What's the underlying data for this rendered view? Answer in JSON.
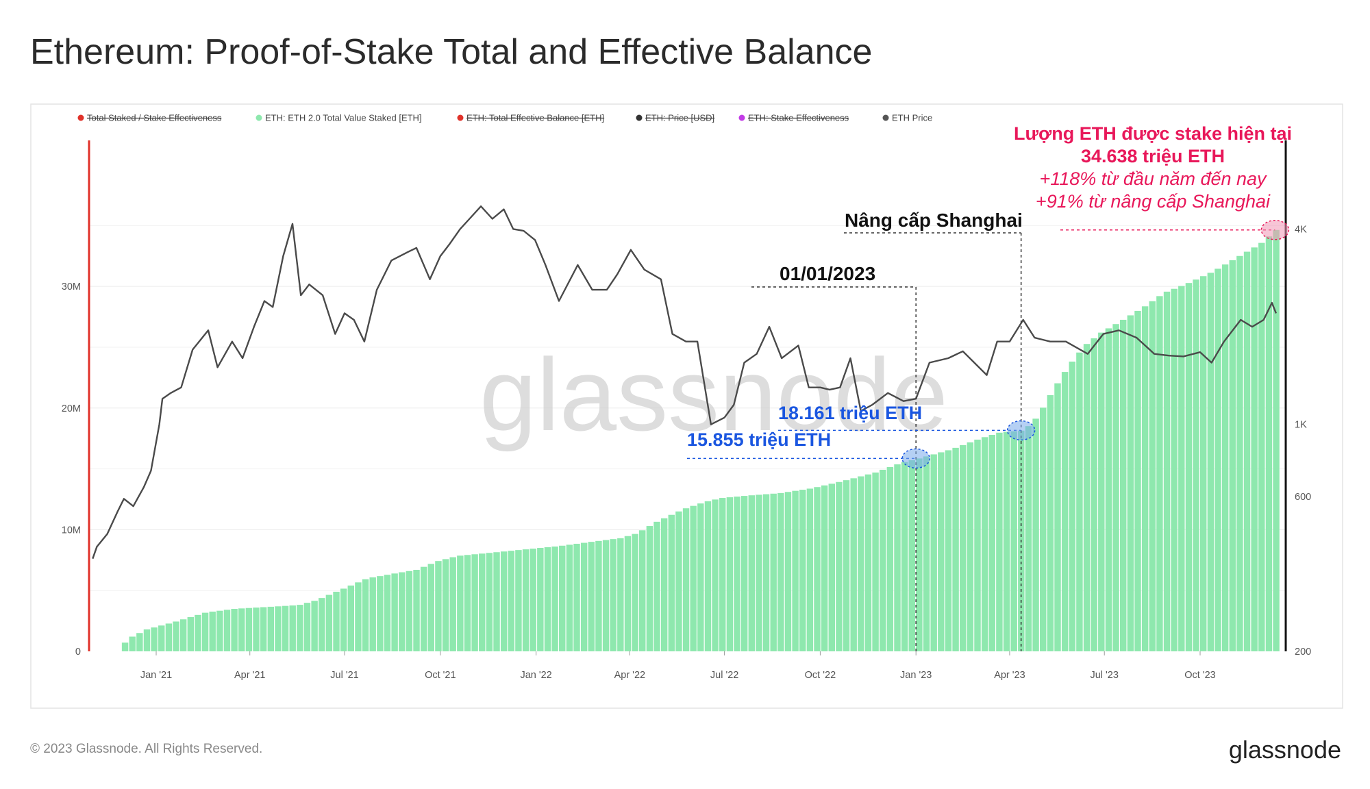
{
  "page": {
    "title": "Ethereum: Proof-of-Stake Total and Effective Balance",
    "footer": "© 2023 Glassnode. All Rights Reserved.",
    "brand": "glassnode",
    "watermark": "glassnode"
  },
  "legend": [
    {
      "label": "Total Staked / Stake Effectiveness",
      "color": "#e0322a",
      "struck": true
    },
    {
      "label": "ETH: ETH 2.0 Total Value Staked [ETH]",
      "color": "#8ee8ae",
      "struck": false
    },
    {
      "label": "ETH: Total Effective Balance [ETH]",
      "color": "#e0322a",
      "struck": true
    },
    {
      "label": "ETH: Price [USD]",
      "color": "#333333",
      "struck": true
    },
    {
      "label": "ETH: Stake Effectiveness",
      "color": "#c23ce6",
      "struck": true
    },
    {
      "label": "ETH Price",
      "color": "#555555",
      "struck": false
    }
  ],
  "annotations": {
    "shanghai": "Nâng cấp Shanghai",
    "jan2023": "01/01/2023",
    "val_shanghai": "18.161 triệu ETH",
    "val_jan2023": "15.855 triệu ETH",
    "current_line1": "Lượng ETH được stake hiện tại",
    "current_line2": "34.638 triệu ETH",
    "current_line3": "+118% từ đầu năm đến nay",
    "current_line4": "+91% từ nâng cấp Shanghai"
  },
  "chart_data": {
    "type": "area",
    "x_range": [
      "2020-11-01",
      "2023-12-31"
    ],
    "x_ticks": [
      "Jan '21",
      "Apr '21",
      "Jul '21",
      "Oct '21",
      "Jan '22",
      "Apr '22",
      "Jul '22",
      "Oct '22",
      "Jan '23",
      "Apr '23",
      "Jul '23",
      "Oct '23"
    ],
    "y_left": {
      "ticks": [
        "0",
        "10M",
        "20M",
        "30M"
      ],
      "range": [
        0,
        42000000
      ]
    },
    "y_right": {
      "scale": "log",
      "ticks": [
        "200",
        "600",
        "1K",
        "4K"
      ],
      "range": [
        200,
        7500
      ]
    },
    "colors": {
      "staked": "#8ee8ae",
      "price": "#4a4a4a",
      "redaxis": "#e0322a",
      "blue": "#1a56e0",
      "pink": "#e8185a"
    },
    "series": [
      {
        "name": "ETH: ETH 2.0 Total Value Staked [ETH]",
        "axis": "left",
        "points": [
          [
            "2020-11-01",
            0
          ],
          [
            "2020-11-24",
            0
          ],
          [
            "2020-12-01",
            1000000
          ],
          [
            "2020-12-20",
            1800000
          ],
          [
            "2021-01-15",
            2400000
          ],
          [
            "2021-02-15",
            3200000
          ],
          [
            "2021-03-15",
            3500000
          ],
          [
            "2021-04-15",
            3650000
          ],
          [
            "2021-05-15",
            3800000
          ],
          [
            "2021-06-01",
            4200000
          ],
          [
            "2021-06-20",
            4900000
          ],
          [
            "2021-07-01",
            5300000
          ],
          [
            "2021-07-20",
            6000000
          ],
          [
            "2021-08-15",
            6400000
          ],
          [
            "2021-09-05",
            6700000
          ],
          [
            "2021-09-25",
            7400000
          ],
          [
            "2021-10-15",
            7850000
          ],
          [
            "2021-11-15",
            8100000
          ],
          [
            "2021-12-15",
            8350000
          ],
          [
            "2022-01-20",
            8650000
          ],
          [
            "2022-02-20",
            9000000
          ],
          [
            "2022-03-20",
            9300000
          ],
          [
            "2022-04-05",
            9700000
          ],
          [
            "2022-04-25",
            10700000
          ],
          [
            "2022-05-20",
            11700000
          ],
          [
            "2022-06-10",
            12300000
          ],
          [
            "2022-06-25",
            12600000
          ],
          [
            "2022-07-20",
            12800000
          ],
          [
            "2022-08-20",
            13000000
          ],
          [
            "2022-09-20",
            13400000
          ],
          [
            "2022-10-20",
            14000000
          ],
          [
            "2022-11-20",
            14700000
          ],
          [
            "2022-12-15",
            15500000
          ],
          [
            "2023-01-01",
            15855000
          ],
          [
            "2023-02-01",
            16600000
          ],
          [
            "2023-03-01",
            17500000
          ],
          [
            "2023-03-20",
            18000000
          ],
          [
            "2023-04-12",
            18161000
          ],
          [
            "2023-04-25",
            19300000
          ],
          [
            "2023-05-10",
            21500000
          ],
          [
            "2023-05-25",
            23500000
          ],
          [
            "2023-06-10",
            25200000
          ],
          [
            "2023-06-25",
            26200000
          ],
          [
            "2023-07-15",
            27200000
          ],
          [
            "2023-08-05",
            28300000
          ],
          [
            "2023-08-25",
            29500000
          ],
          [
            "2023-09-15",
            30200000
          ],
          [
            "2023-10-10",
            31200000
          ],
          [
            "2023-11-05",
            32500000
          ],
          [
            "2023-11-25",
            33500000
          ],
          [
            "2023-12-10",
            34638000
          ],
          [
            "2023-12-15",
            34638000
          ]
        ]
      },
      {
        "name": "ETH Price",
        "axis": "right",
        "points": [
          [
            "2020-11-01",
            386
          ],
          [
            "2020-11-05",
            420
          ],
          [
            "2020-11-15",
            460
          ],
          [
            "2020-11-25",
            540
          ],
          [
            "2020-12-01",
            590
          ],
          [
            "2020-12-10",
            560
          ],
          [
            "2020-12-20",
            640
          ],
          [
            "2020-12-27",
            720
          ],
          [
            "2021-01-04",
            1000
          ],
          [
            "2021-01-07",
            1200
          ],
          [
            "2021-01-15",
            1250
          ],
          [
            "2021-01-25",
            1300
          ],
          [
            "2021-02-05",
            1700
          ],
          [
            "2021-02-20",
            1950
          ],
          [
            "2021-03-01",
            1500
          ],
          [
            "2021-03-15",
            1800
          ],
          [
            "2021-03-25",
            1600
          ],
          [
            "2021-04-05",
            2000
          ],
          [
            "2021-04-15",
            2400
          ],
          [
            "2021-04-23",
            2300
          ],
          [
            "2021-05-03",
            3300
          ],
          [
            "2021-05-12",
            4150
          ],
          [
            "2021-05-20",
            2500
          ],
          [
            "2021-05-28",
            2700
          ],
          [
            "2021-06-10",
            2500
          ],
          [
            "2021-06-22",
            1900
          ],
          [
            "2021-07-01",
            2200
          ],
          [
            "2021-07-10",
            2100
          ],
          [
            "2021-07-20",
            1800
          ],
          [
            "2021-08-01",
            2600
          ],
          [
            "2021-08-15",
            3200
          ],
          [
            "2021-08-31",
            3400
          ],
          [
            "2021-09-08",
            3500
          ],
          [
            "2021-09-21",
            2800
          ],
          [
            "2021-10-01",
            3300
          ],
          [
            "2021-10-10",
            3600
          ],
          [
            "2021-10-20",
            4000
          ],
          [
            "2021-10-29",
            4300
          ],
          [
            "2021-11-09",
            4700
          ],
          [
            "2021-11-20",
            4300
          ],
          [
            "2021-12-01",
            4600
          ],
          [
            "2021-12-10",
            4000
          ],
          [
            "2021-12-20",
            3950
          ],
          [
            "2021-12-31",
            3700
          ],
          [
            "2022-01-10",
            3100
          ],
          [
            "2022-01-23",
            2400
          ],
          [
            "2022-02-10",
            3100
          ],
          [
            "2022-02-24",
            2600
          ],
          [
            "2022-03-10",
            2600
          ],
          [
            "2022-03-20",
            2900
          ],
          [
            "2022-04-02",
            3450
          ],
          [
            "2022-04-15",
            3000
          ],
          [
            "2022-05-01",
            2800
          ],
          [
            "2022-05-12",
            1900
          ],
          [
            "2022-05-25",
            1800
          ],
          [
            "2022-06-05",
            1800
          ],
          [
            "2022-06-18",
            1000
          ],
          [
            "2022-07-01",
            1050
          ],
          [
            "2022-07-10",
            1150
          ],
          [
            "2022-07-20",
            1550
          ],
          [
            "2022-08-01",
            1650
          ],
          [
            "2022-08-13",
            2000
          ],
          [
            "2022-08-25",
            1600
          ],
          [
            "2022-09-10",
            1750
          ],
          [
            "2022-09-20",
            1300
          ],
          [
            "2022-10-01",
            1300
          ],
          [
            "2022-10-10",
            1280
          ],
          [
            "2022-10-20",
            1300
          ],
          [
            "2022-10-30",
            1600
          ],
          [
            "2022-11-09",
            1100
          ],
          [
            "2022-11-20",
            1150
          ],
          [
            "2022-12-05",
            1250
          ],
          [
            "2022-12-20",
            1180
          ],
          [
            "2023-01-01",
            1200
          ],
          [
            "2023-01-14",
            1550
          ],
          [
            "2023-02-01",
            1600
          ],
          [
            "2023-02-15",
            1680
          ],
          [
            "2023-03-10",
            1420
          ],
          [
            "2023-03-20",
            1800
          ],
          [
            "2023-04-01",
            1800
          ],
          [
            "2023-04-14",
            2100
          ],
          [
            "2023-04-25",
            1850
          ],
          [
            "2023-05-10",
            1800
          ],
          [
            "2023-05-25",
            1800
          ],
          [
            "2023-06-15",
            1650
          ],
          [
            "2023-06-30",
            1900
          ],
          [
            "2023-07-15",
            1950
          ],
          [
            "2023-08-01",
            1850
          ],
          [
            "2023-08-18",
            1650
          ],
          [
            "2023-09-01",
            1630
          ],
          [
            "2023-09-15",
            1620
          ],
          [
            "2023-10-01",
            1670
          ],
          [
            "2023-10-12",
            1550
          ],
          [
            "2023-10-24",
            1800
          ],
          [
            "2023-11-09",
            2100
          ],
          [
            "2023-11-20",
            2000
          ],
          [
            "2023-12-01",
            2100
          ],
          [
            "2023-12-09",
            2370
          ],
          [
            "2023-12-13",
            2200
          ]
        ]
      }
    ]
  }
}
